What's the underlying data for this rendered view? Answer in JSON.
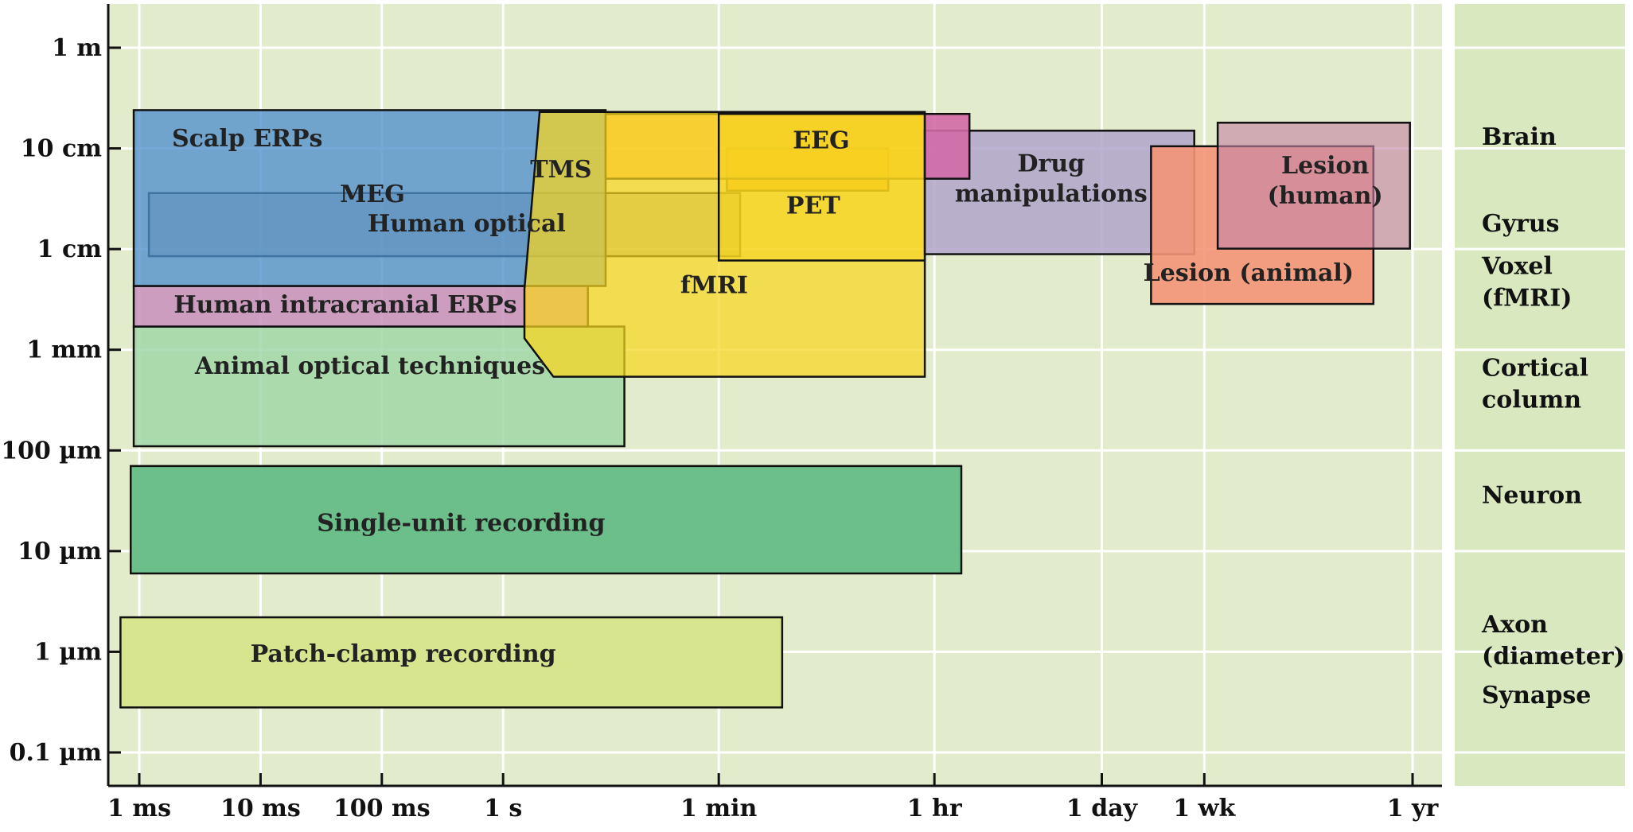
{
  "chart_data": {
    "type": "area",
    "x_scale": "log",
    "y_scale": "log",
    "grid": true,
    "x_ticks": [
      {
        "label": "1 ms",
        "seconds": 0.001
      },
      {
        "label": "10 ms",
        "seconds": 0.01
      },
      {
        "label": "100 ms",
        "seconds": 0.1
      },
      {
        "label": "1 s",
        "seconds": 1
      },
      {
        "label": "1 min",
        "seconds": 60
      },
      {
        "label": "1 hr",
        "seconds": 3600
      },
      {
        "label": "1 day",
        "seconds": 86400
      },
      {
        "label": "1 wk",
        "seconds": 604800
      },
      {
        "label": "1 yr",
        "seconds": 31536000
      }
    ],
    "y_ticks": [
      {
        "label": "1 m",
        "meters": 1
      },
      {
        "label": "10 cm",
        "meters": 0.1
      },
      {
        "label": "1 cm",
        "meters": 0.01
      },
      {
        "label": "1 mm",
        "meters": 0.001
      },
      {
        "label": "100 µm",
        "meters": 0.0001
      },
      {
        "label": "10 µm",
        "meters": 1e-05
      },
      {
        "label": "1 µm",
        "meters": 1e-06
      },
      {
        "label": "0.1 µm",
        "meters": 1e-07
      }
    ],
    "scale_labels": [
      {
        "lines": [
          "Brain"
        ],
        "meters": 0.13
      },
      {
        "lines": [
          "Gyrus"
        ],
        "meters": 0.018
      },
      {
        "lines": [
          "Voxel",
          "(fMRI)"
        ],
        "meters": 0.0047
      },
      {
        "lines": [
          "Cortical",
          "column"
        ],
        "meters": 0.00046
      },
      {
        "lines": [
          "Neuron"
        ],
        "meters": 3.6e-05
      },
      {
        "lines": [
          "Axon",
          "(diameter)"
        ],
        "meters": 1.3e-06
      },
      {
        "lines": [
          "Synapse"
        ],
        "meters": 3.7e-07
      }
    ],
    "regions": [
      {
        "label_lines": [
          "Patch-clamp recording"
        ],
        "t": [
          0.0007,
          200
        ],
        "s": [
          2.8e-07,
          2.2e-06
        ],
        "color": "#d6e58e",
        "opacity": 1,
        "label_t": 0.15,
        "label_s": 9.5e-07
      },
      {
        "label_lines": [
          "Single-unit recording"
        ],
        "t": [
          0.00085,
          6000
        ],
        "s": [
          6e-06,
          7e-05
        ],
        "color": "#6cbf8a",
        "opacity": 1,
        "label_t": 0.45,
        "label_s": 1.9e-05
      },
      {
        "label_lines": [
          "Animal optical techniques"
        ],
        "t": [
          0.0009,
          10
        ],
        "s": [
          0.00011,
          0.0017
        ],
        "color": "#9fd6a6",
        "opacity": 0.82,
        "label_t": 0.08,
        "label_s": 0.00069
      },
      {
        "label_lines": [
          "Human intracranial ERPs"
        ],
        "t": [
          0.0009,
          5
        ],
        "s": [
          0.0017,
          0.0043
        ],
        "color": "#c88fbd",
        "opacity": 0.85,
        "label_t": 0.05,
        "label_s": 0.0028
      },
      {
        "label_lines": [
          "Human optical"
        ],
        "t": [
          0.0012,
          90
        ],
        "s": [
          0.0085,
          0.036
        ],
        "color": "#9a9a8a",
        "opacity": 0.62,
        "label_t": 0.5,
        "label_s": 0.018
      },
      {
        "label_lines": [
          "Scalp ERPs",
          "MEG"
        ],
        "t": [
          0.0009,
          7
        ],
        "s": [
          0.0043,
          0.24
        ],
        "color": "#4f8fcc",
        "opacity": 0.78,
        "label_t": 0.022,
        "label_s": 0.105
      },
      {
        "label_lines": [
          "TMS"
        ],
        "t": [
          70,
          1500
        ],
        "s": [
          0.038,
          0.1
        ],
        "color": "#f59a1d",
        "opacity": 0.88,
        "label_t": 3,
        "label_s": 0.062
      },
      {
        "label_lines": [
          "EEG"
        ],
        "t": [
          7,
          3000
        ],
        "s": [
          0.05,
          0.22
        ],
        "color": "#f9b24a",
        "opacity": 0.78,
        "label_t": 420,
        "label_s": 0.12
      },
      {
        "label_lines": [
          "fMRI"
        ],
        "polygon": [
          [
            2,
            0.23
          ],
          [
            3000,
            0.23
          ],
          [
            3000,
            0.00054
          ],
          [
            2.6,
            0.00054
          ],
          [
            1.5,
            0.0013
          ],
          [
            1.5,
            0.004
          ]
        ],
        "color": "#f8d61e",
        "opacity": 0.72,
        "label_t": 55,
        "label_s": 0.0044
      },
      {
        "label_lines": [
          "PET"
        ],
        "t": [
          60,
          3000
        ],
        "s": [
          0.0077,
          0.22
        ],
        "color": "#f8d61e",
        "opacity": 0.55,
        "label_t": 360,
        "label_s": 0.027
      },
      {
        "label_lines": [
          "Drug",
          "manipulations"
        ],
        "t": [
          3000,
          500000
        ],
        "s": [
          0.0089,
          0.15
        ],
        "color": "#b0a4ca",
        "opacity": 0.85,
        "label_t": 33000,
        "label_s": 0.05
      },
      {
        "label_lines": [
          "Lesion (animal)"
        ],
        "t": [
          220000,
          15000000
        ],
        "s": [
          0.00285,
          0.105
        ],
        "color": "#f49578",
        "opacity": 0.9,
        "label_t": 1400000,
        "label_s": 0.0058
      },
      {
        "label_lines": [
          "Lesion",
          "(human)"
        ],
        "t": [
          780000,
          30000000
        ],
        "s": [
          0.0101,
          0.18
        ],
        "color": "#c584a6",
        "opacity": 0.62,
        "label_t": 6000000,
        "label_s": 0.048
      },
      {
        "label_lines": [],
        "t": [
          3000,
          7000
        ],
        "s": [
          0.05,
          0.22
        ],
        "color": "#d26aa6",
        "opacity": 0.9,
        "label_t": 4500,
        "label_s": 0.1
      }
    ]
  }
}
